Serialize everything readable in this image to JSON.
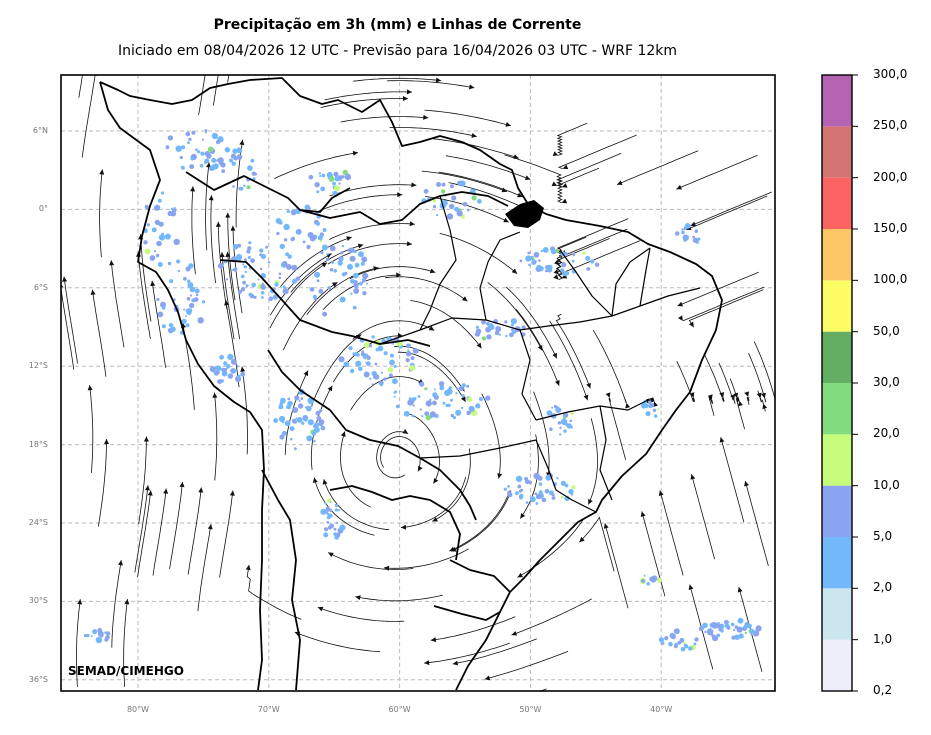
{
  "title": "Precipitação em 3h (mm) e Linhas de Corrente",
  "subtitle": "Iniciado em 08/04/2026 12 UTC - Previsão para 16/04/2026 03 UTC - WRF 12km",
  "credit": "SEMAD/CIMEHGO",
  "lat_ticks": [
    "6°N",
    "0°",
    "6°S",
    "12°S",
    "18°S",
    "24°S",
    "30°S",
    "36°S"
  ],
  "lon_ticks": [
    "80°W",
    "70°W",
    "60°W",
    "50°W",
    "40°W"
  ],
  "colorbar": {
    "labels": [
      "0,2",
      "1,0",
      "2,0",
      "5,0",
      "10,0",
      "20,0",
      "30,0",
      "50,0",
      "100,0",
      "150,0",
      "200,0",
      "250,0",
      "300,0"
    ],
    "colors": [
      "#eeeefa",
      "#cce6f0",
      "#74b8fc",
      "#8aa4ef",
      "#c6fc7c",
      "#82dc7c",
      "#64ae64",
      "#fcfc64",
      "#fcc666",
      "#fc6464",
      "#d47472",
      "#b462b2"
    ]
  }
}
